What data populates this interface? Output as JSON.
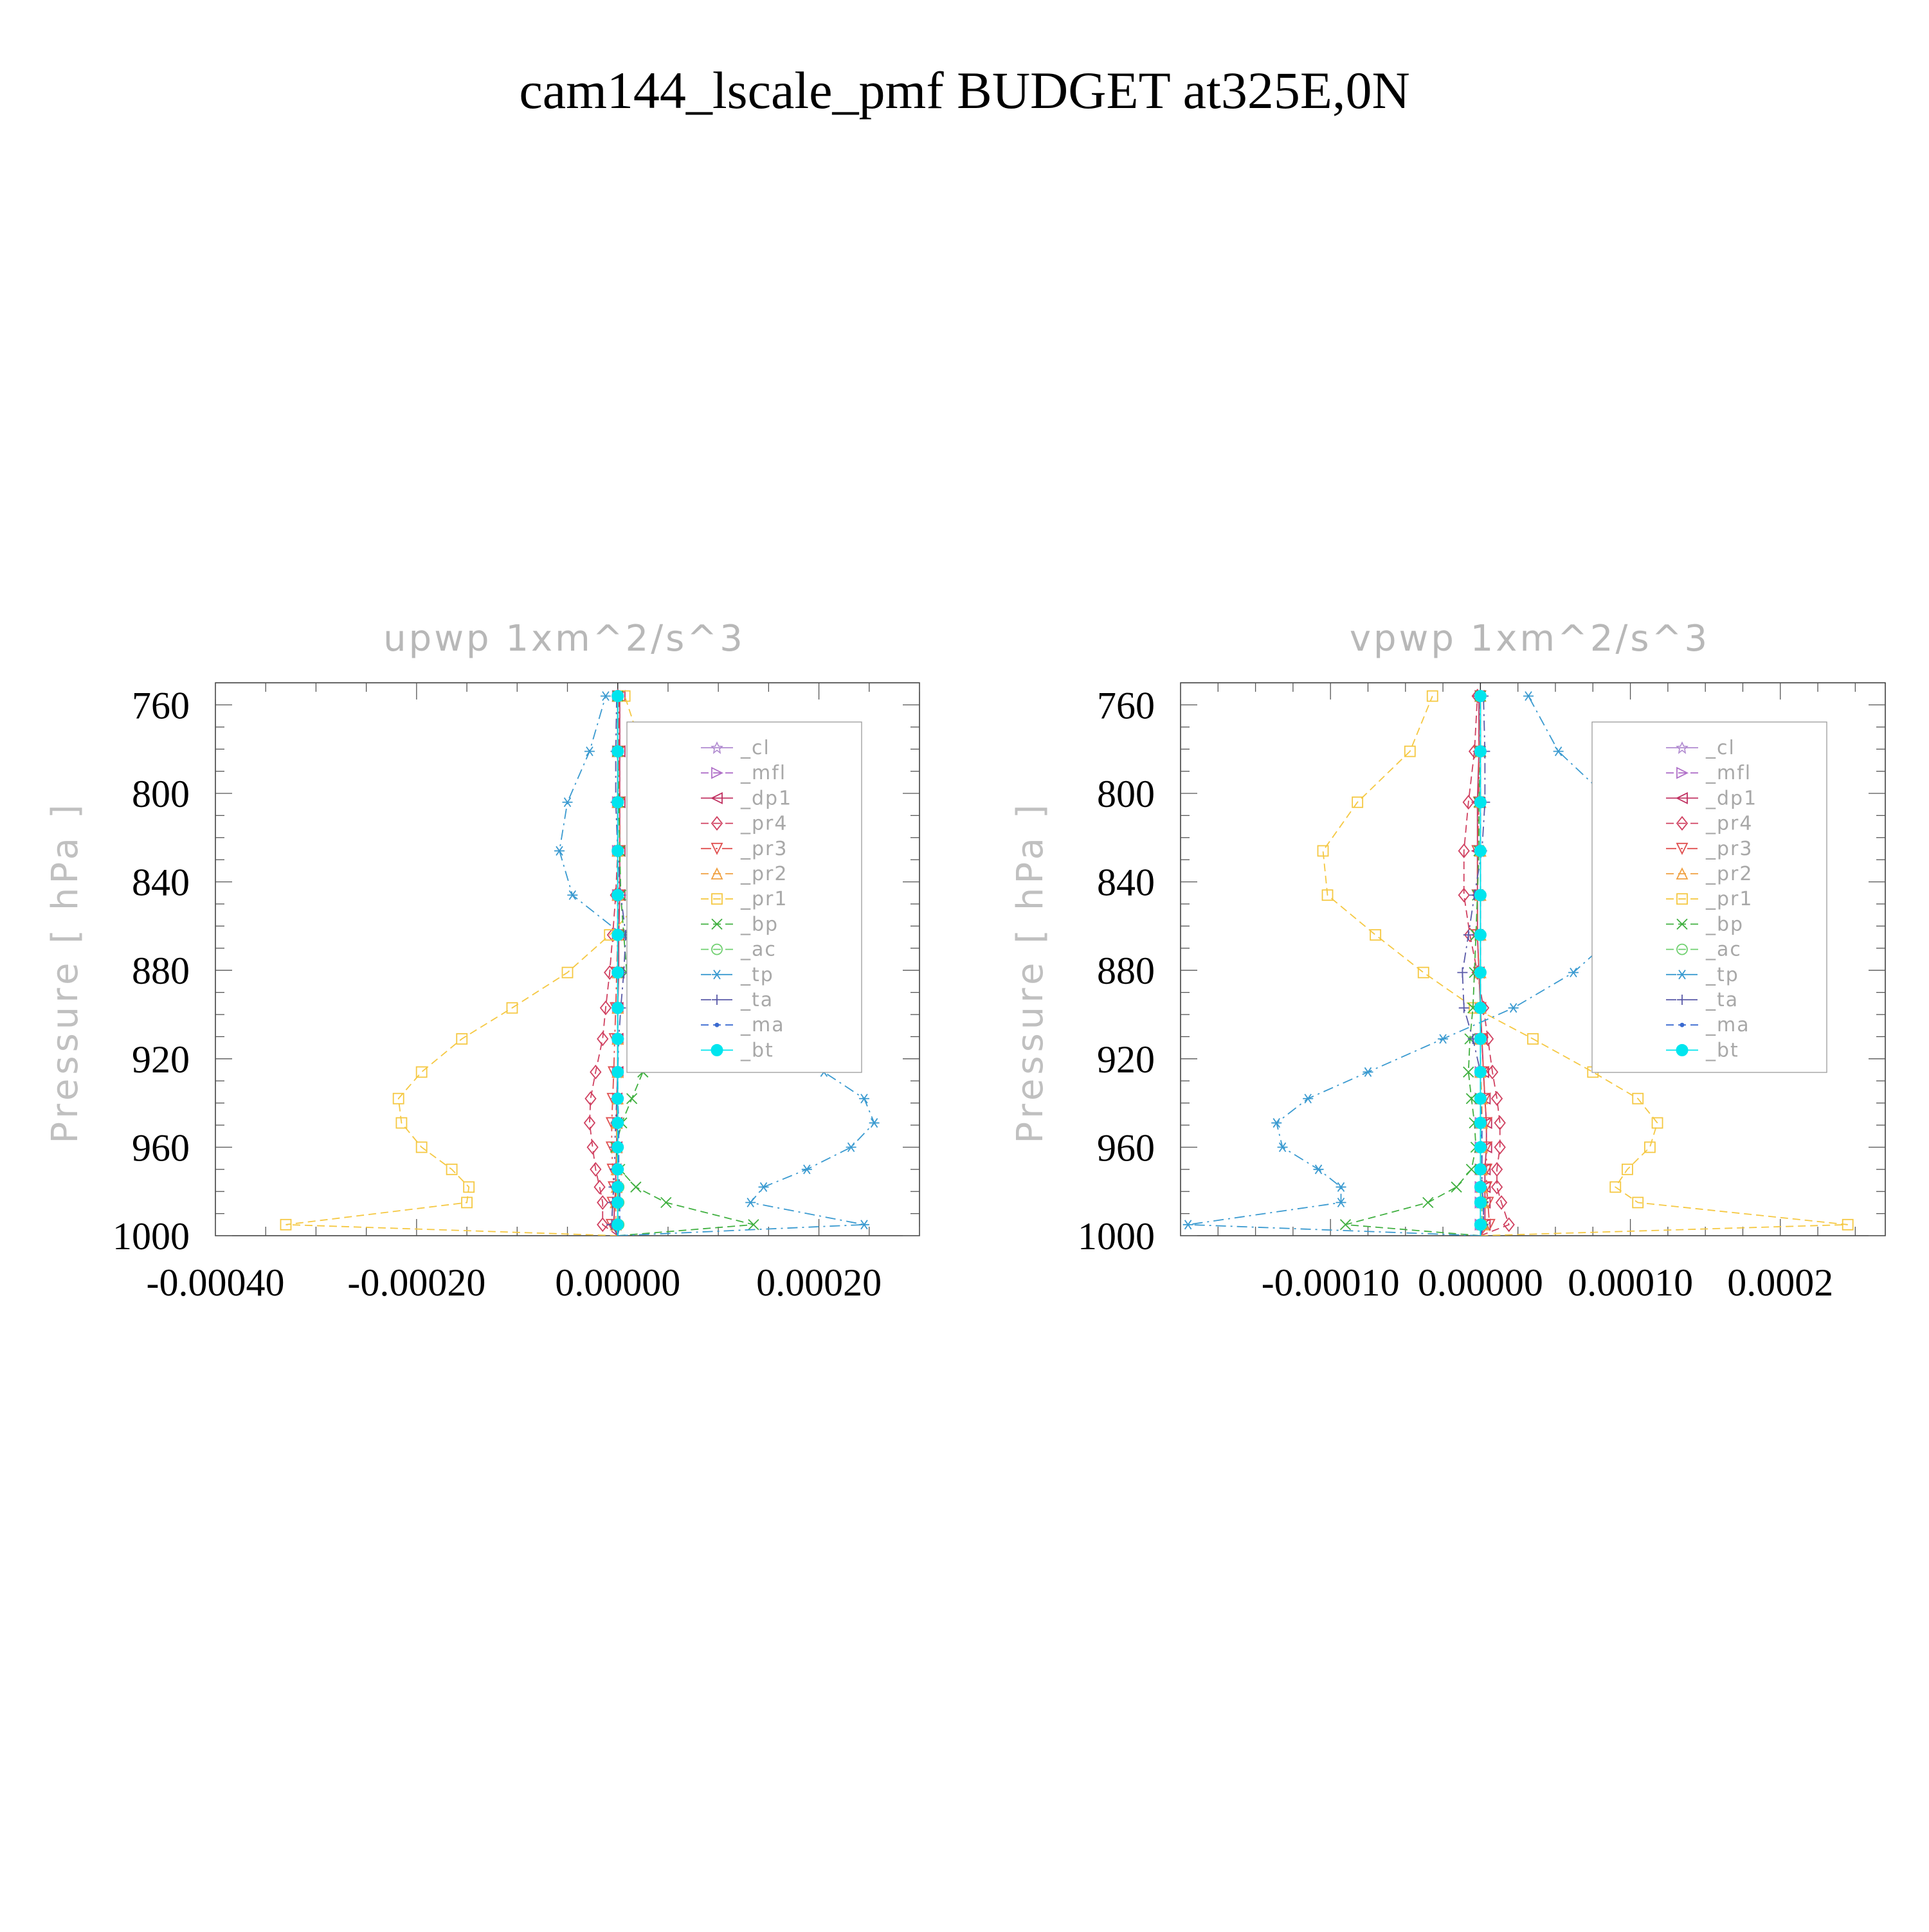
{
  "figure": {
    "title": "cam144_lscale_pmf  BUDGET at325E,0N"
  },
  "chart_data": [
    {
      "type": "line",
      "title": "upwp    1xm^2/s^3",
      "ylabel": "Pressure  [ hPa ]",
      "xlabel": "",
      "xlim": [
        -0.0004,
        0.0003
      ],
      "ylim": [
        1000,
        750
      ],
      "y_inverted": true,
      "xticks": [
        -0.0004,
        -0.0002,
        0.0,
        0.0002
      ],
      "xtick_labels": [
        "-0.00040",
        "-0.00020",
        "0.00000",
        "0.00020"
      ],
      "yticks": [
        760,
        800,
        840,
        880,
        920,
        960,
        1000
      ],
      "ytick_labels": [
        "760",
        "800",
        "840",
        "880",
        "920",
        "960",
        "1000"
      ],
      "legend_position": "top-right",
      "pressure_levels": [
        1000,
        995,
        985,
        978,
        970,
        960,
        949,
        938,
        926,
        911,
        897,
        881,
        864,
        846,
        826,
        804,
        781,
        756
      ],
      "series": [
        {
          "name": "_cl",
          "color": "#b08ad0",
          "marker": "star",
          "dash": "solid",
          "values": [
            0,
            0,
            0,
            0,
            0,
            0,
            0,
            0,
            0,
            0,
            0,
            0,
            0,
            0,
            0,
            0,
            0,
            0
          ]
        },
        {
          "name": "_mfl",
          "color": "#b070c8",
          "marker": "triangle-right",
          "dash": "dash",
          "values": [
            0,
            0,
            0,
            0,
            0,
            0,
            0,
            0,
            0,
            0,
            0,
            0,
            0,
            0,
            0,
            0,
            0,
            0
          ]
        },
        {
          "name": "_dp1",
          "color": "#c03060",
          "marker": "triangle-left",
          "dash": "solid",
          "values": [
            0,
            -4e-06,
            -3e-06,
            -2e-06,
            -2e-06,
            -1e-06,
            -1e-06,
            -1e-06,
            0,
            0,
            0,
            1e-06,
            1e-06,
            2e-06,
            2e-06,
            2e-06,
            2e-06,
            2e-06
          ]
        },
        {
          "name": "_pr4",
          "color": "#d04060",
          "marker": "diamond",
          "dash": "dash",
          "values": [
            0,
            -1.5e-05,
            -1.5e-05,
            -1.8e-05,
            -2.2e-05,
            -2.5e-05,
            -2.8e-05,
            -2.7e-05,
            -2.2e-05,
            -1.5e-05,
            -1.2e-05,
            -8e-06,
            -5e-06,
            -2e-06,
            0,
            0,
            0,
            0
          ]
        },
        {
          "name": "_pr3",
          "color": "#e05050",
          "marker": "triangle-down",
          "dash": "dashdot",
          "values": [
            0,
            -6e-06,
            -5e-06,
            -4e-06,
            -5e-06,
            -6e-06,
            -6e-06,
            -5e-06,
            -4e-06,
            -3e-06,
            -2e-06,
            -1e-06,
            0,
            1e-06,
            2e-06,
            2e-06,
            1e-06,
            1e-06
          ]
        },
        {
          "name": "_pr2",
          "color": "#f0a040",
          "marker": "triangle-up",
          "dash": "dash",
          "values": [
            0,
            -2e-06,
            -2e-06,
            -1e-06,
            -1e-06,
            -1e-06,
            -1e-06,
            0,
            0,
            0,
            0,
            0,
            0,
            0,
            0,
            0,
            0,
            0
          ]
        },
        {
          "name": "_pr1",
          "color": "#f5c842",
          "marker": "square",
          "dash": "dash",
          "values": [
            0,
            -0.00033,
            -0.00015,
            -0.000148,
            -0.000165,
            -0.000195,
            -0.000215,
            -0.000218,
            -0.000195,
            -0.000155,
            -0.000105,
            -5e-05,
            -8e-06,
            2.8e-05,
            5e-05,
            4.5e-05,
            2.5e-05,
            7e-06
          ]
        },
        {
          "name": "_bp",
          "color": "#40b040",
          "marker": "cross",
          "dash": "dash",
          "values": [
            0,
            0.000135,
            4.8e-05,
            1.8e-05,
            2e-06,
            -2e-06,
            4e-06,
            1.4e-05,
            2.5e-05,
            2.2e-05,
            1.5e-05,
            9e-06,
            6e-06,
            3e-06,
            2e-06,
            1e-06,
            0,
            0
          ]
        },
        {
          "name": "_ac",
          "color": "#70d070",
          "marker": "circle",
          "dash": "dash",
          "values": [
            0,
            1e-06,
            1e-06,
            1e-06,
            0,
            0,
            0,
            0,
            0,
            0,
            0,
            0,
            0,
            0,
            0,
            0,
            0,
            0
          ]
        },
        {
          "name": "_tp",
          "color": "#3a9ad0",
          "marker": "asterisk",
          "dash": "dashdot",
          "values": [
            0,
            0.000245,
            0.000132,
            0.000145,
            0.000188,
            0.000232,
            0.000255,
            0.000245,
            0.000205,
            0.00015,
            8.8e-05,
            3.5e-05,
            5e-06,
            -4.5e-05,
            -5.8e-05,
            -5e-05,
            -2.8e-05,
            -1.2e-05
          ]
        },
        {
          "name": "_ta",
          "color": "#5a5aa8",
          "marker": "plus",
          "dash": "dashdot",
          "values": [
            0,
            -6e-06,
            -5e-06,
            -4e-06,
            -3e-06,
            -3e-06,
            -2e-06,
            -1e-06,
            0,
            1e-06,
            3e-06,
            6e-06,
            8e-06,
            3e-06,
            0,
            -2e-06,
            -2e-06,
            -1e-06
          ]
        },
        {
          "name": "_ma",
          "color": "#3a6ad0",
          "marker": "dot",
          "dash": "dash",
          "values": [
            0,
            2e-06,
            2e-06,
            2e-06,
            1e-06,
            1e-06,
            1e-06,
            0,
            0,
            0,
            0,
            0,
            0,
            0,
            0,
            0,
            0,
            0
          ]
        },
        {
          "name": "_bt",
          "color": "#00e5ee",
          "marker": "filled-circle",
          "dash": "solid",
          "values": [
            0,
            0,
            0,
            0,
            0,
            0,
            0,
            0,
            0,
            0,
            0,
            0,
            0,
            0,
            0,
            0,
            0,
            0
          ]
        }
      ]
    },
    {
      "type": "line",
      "title": "vpwp    1xm^2/s^3",
      "ylabel": "Pressure  [ hPa ]",
      "xlabel": "",
      "xlim": [
        -0.0002,
        0.00027
      ],
      "ylim": [
        1000,
        750
      ],
      "y_inverted": true,
      "xticks": [
        -0.0001,
        0.0,
        0.0001,
        0.0002
      ],
      "xtick_labels": [
        "-0.00010",
        "0.00000",
        "0.00010",
        "0.0002"
      ],
      "yticks": [
        760,
        800,
        840,
        880,
        920,
        960,
        1000
      ],
      "ytick_labels": [
        "760",
        "800",
        "840",
        "880",
        "920",
        "960",
        "1000"
      ],
      "legend_position": "top-right",
      "pressure_levels": [
        1000,
        995,
        985,
        978,
        970,
        960,
        949,
        938,
        926,
        911,
        897,
        881,
        864,
        846,
        826,
        804,
        781,
        756
      ],
      "series": [
        {
          "name": "_cl",
          "color": "#b08ad0",
          "marker": "star",
          "dash": "solid",
          "values": [
            0,
            0,
            0,
            0,
            0,
            0,
            0,
            0,
            0,
            0,
            0,
            0,
            0,
            0,
            0,
            0,
            0,
            0
          ]
        },
        {
          "name": "_mfl",
          "color": "#b070c8",
          "marker": "triangle-right",
          "dash": "dash",
          "values": [
            0,
            0,
            0,
            0,
            0,
            0,
            0,
            0,
            0,
            0,
            0,
            0,
            0,
            0,
            0,
            0,
            0,
            0
          ]
        },
        {
          "name": "_dp1",
          "color": "#c03060",
          "marker": "triangle-left",
          "dash": "solid",
          "values": [
            0,
            3e-06,
            3e-06,
            3e-06,
            3e-06,
            4e-06,
            4e-06,
            3e-06,
            2e-06,
            1e-06,
            0,
            -1e-06,
            -2e-06,
            -2e-06,
            -2e-06,
            -2e-06,
            -1e-06,
            -1e-06
          ]
        },
        {
          "name": "_pr4",
          "color": "#d04060",
          "marker": "diamond",
          "dash": "dash",
          "values": [
            0,
            1.9e-05,
            1.4e-05,
            1.1e-05,
            1.1e-05,
            1.3e-05,
            1.3e-05,
            1.1e-05,
            8e-06,
            5e-06,
            2e-06,
            -2e-06,
            -7e-06,
            -1.1e-05,
            -1.1e-05,
            -8e-06,
            -4e-06,
            -2e-06
          ]
        },
        {
          "name": "_pr3",
          "color": "#e05050",
          "marker": "triangle-down",
          "dash": "dashdot",
          "values": [
            0,
            6e-06,
            5e-06,
            4e-06,
            4e-06,
            4e-06,
            4e-06,
            3e-06,
            2e-06,
            1e-06,
            0,
            -1e-06,
            -2e-06,
            -2e-06,
            -2e-06,
            -1e-06,
            -1e-06,
            0
          ]
        },
        {
          "name": "_pr2",
          "color": "#f0a040",
          "marker": "triangle-up",
          "dash": "dash",
          "values": [
            0,
            2e-06,
            2e-06,
            1e-06,
            1e-06,
            1e-06,
            1e-06,
            1e-06,
            0,
            0,
            0,
            0,
            0,
            0,
            0,
            0,
            0,
            0
          ]
        },
        {
          "name": "_pr1",
          "color": "#f5c842",
          "marker": "square",
          "dash": "dash",
          "values": [
            0,
            0.000245,
            0.000105,
            9e-05,
            9.8e-05,
            0.000113,
            0.000118,
            0.000105,
            7.5e-05,
            3.5e-05,
            -4e-06,
            -3.8e-05,
            -7e-05,
            -0.000102,
            -0.000105,
            -8.2e-05,
            -4.7e-05,
            -3.2e-05
          ]
        },
        {
          "name": "_bp",
          "color": "#40b040",
          "marker": "cross",
          "dash": "dash",
          "values": [
            0,
            -9e-05,
            -3.5e-05,
            -1.6e-05,
            -6e-06,
            -3e-06,
            -4e-06,
            -6e-06,
            -8e-06,
            -7e-06,
            -5e-06,
            -4e-06,
            -3e-06,
            -2e-06,
            -1e-06,
            -1e-06,
            0,
            0
          ]
        },
        {
          "name": "_ac",
          "color": "#70d070",
          "marker": "circle",
          "dash": "dash",
          "values": [
            0,
            1e-06,
            1e-06,
            0,
            0,
            0,
            0,
            0,
            0,
            0,
            0,
            0,
            0,
            0,
            0,
            0,
            0,
            0
          ]
        },
        {
          "name": "_tp",
          "color": "#3a9ad0",
          "marker": "asterisk",
          "dash": "dashdot",
          "values": [
            0,
            -0.000195,
            -9.3e-05,
            -9.3e-05,
            -0.000108,
            -0.000132,
            -0.000136,
            -0.000115,
            -7.5e-05,
            -2.5e-05,
            2.2e-05,
            6.2e-05,
            9e-05,
            0.000108,
            0.000115,
            8.8e-05,
            5.2e-05,
            3.2e-05
          ]
        },
        {
          "name": "_ta",
          "color": "#5a5aa8",
          "marker": "plus",
          "dash": "dashdot",
          "values": [
            0,
            2e-06,
            2e-06,
            1e-06,
            1e-06,
            1e-06,
            0,
            0,
            0,
            -5e-06,
            -1.1e-05,
            -1.2e-05,
            -8e-06,
            -4e-06,
            1e-06,
            3e-06,
            3e-06,
            2e-06
          ]
        },
        {
          "name": "_ma",
          "color": "#3a6ad0",
          "marker": "dot",
          "dash": "dash",
          "values": [
            0,
            2e-06,
            2e-06,
            1e-06,
            1e-06,
            1e-06,
            1e-06,
            0,
            0,
            0,
            0,
            0,
            0,
            0,
            0,
            0,
            0,
            0
          ]
        },
        {
          "name": "_bt",
          "color": "#00e5ee",
          "marker": "filled-circle",
          "dash": "solid",
          "values": [
            0,
            0,
            0,
            0,
            0,
            0,
            0,
            0,
            0,
            0,
            0,
            0,
            0,
            0,
            0,
            0,
            0,
            0
          ]
        }
      ]
    }
  ]
}
